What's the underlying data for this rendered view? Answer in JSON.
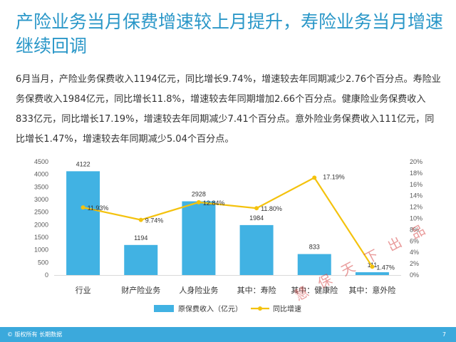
{
  "title": "产险业务当月保费增速较上月提升，寿险业务当月增速继续回调",
  "body": "6月当月，产险业务保费收入1194亿元，同比增长9.74%，增速较去年同期减少2.76个百分点。寿险业务保费收入1984亿元，同比增长11.8%，增速较去年同期增加2.66个百分点。健康险业务保费收入833亿元，同比增长17.19%，增速较去年同期减少7.41个百分点。意外险业务保费收入111亿元，同比增长1.47%，增速较去年同期减少5.04个百分点。",
  "footer": {
    "copyright": "© 版权所有 长期数据",
    "page": "7"
  },
  "watermark": "慧 保 天 下 出 品",
  "colors": {
    "title": "#2a97c8",
    "bar": "#41b2e3",
    "line": "#f4c20d",
    "footer": "#3ba9dc"
  },
  "chart_data": {
    "type": "bar",
    "categories": [
      "行业",
      "财产险业务",
      "人身险业务",
      "其中：寿险",
      "其中：健康险",
      "其中：意外险"
    ],
    "series": [
      {
        "name": "原保费收入（亿元）",
        "type": "bar",
        "axis": "left",
        "values": [
          4122,
          1194,
          2928,
          1984,
          833,
          111
        ],
        "labels": [
          "4122",
          "1194",
          "2928",
          "1984",
          "833",
          "111"
        ]
      },
      {
        "name": "同比增速",
        "type": "line",
        "axis": "right",
        "values": [
          11.93,
          9.74,
          12.84,
          11.8,
          17.19,
          1.47
        ],
        "labels": [
          "11.93%",
          "9.74%",
          "12.84%",
          "11.80%",
          "17.19%",
          "1.47%"
        ]
      }
    ],
    "y_left": {
      "ylim": [
        0,
        4500
      ],
      "ticks": [
        "0",
        "500",
        "1000",
        "1500",
        "2000",
        "2500",
        "3000",
        "3500",
        "4000",
        "4500"
      ]
    },
    "y_right": {
      "ylim": [
        0,
        20
      ],
      "ticks": [
        "0%",
        "2%",
        "4%",
        "6%",
        "8%",
        "10%",
        "12%",
        "14%",
        "16%",
        "18%",
        "20%"
      ]
    },
    "grid": false,
    "legend_position": "bottom"
  }
}
